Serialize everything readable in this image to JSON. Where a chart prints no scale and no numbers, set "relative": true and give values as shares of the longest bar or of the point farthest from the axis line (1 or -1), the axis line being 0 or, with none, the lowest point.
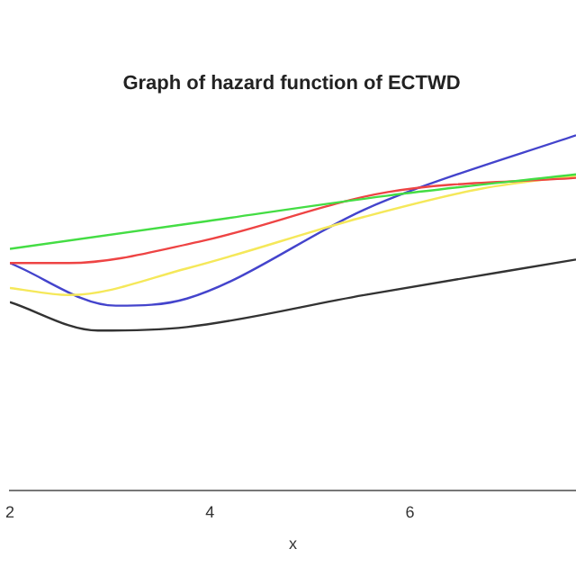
{
  "chart_data": {
    "type": "line",
    "title": "Graph of hazard function of ECTWD",
    "xlabel": "x",
    "relative": true,
    "xlim": [
      2,
      7.66
    ],
    "xticks": [
      2,
      4,
      6
    ],
    "grid": false,
    "legend": false,
    "marker": "none",
    "line_style": "solid",
    "series": [
      {
        "color": "#44dd44",
        "x": [
          2,
          3.89,
          5.78,
          7.66
        ],
        "values": [
          0.68,
          0.755,
          0.83,
          0.89
        ]
      },
      {
        "color": "#ee4444",
        "x": [
          2,
          2.59,
          3.89,
          5.78,
          7.66
        ],
        "values": [
          0.64,
          0.64,
          0.7,
          0.84,
          0.88
        ]
      },
      {
        "color": "#f5e85a",
        "x": [
          2,
          2.59,
          3.77,
          5.54,
          6.72,
          7.66
        ],
        "values": [
          0.57,
          0.55,
          0.625,
          0.77,
          0.85,
          0.886
        ]
      },
      {
        "color": "#4444cc",
        "x": [
          2,
          3.06,
          3.77,
          5.54,
          6.07,
          7.66
        ],
        "values": [
          0.64,
          0.52,
          0.54,
          0.79,
          0.85,
          1
        ]
      },
      {
        "color": "#333333",
        "x": [
          2,
          2.88,
          3.77,
          5.54,
          7.66
        ],
        "values": [
          0.53,
          0.45,
          0.46,
          0.55,
          0.65
        ]
      }
    ]
  }
}
